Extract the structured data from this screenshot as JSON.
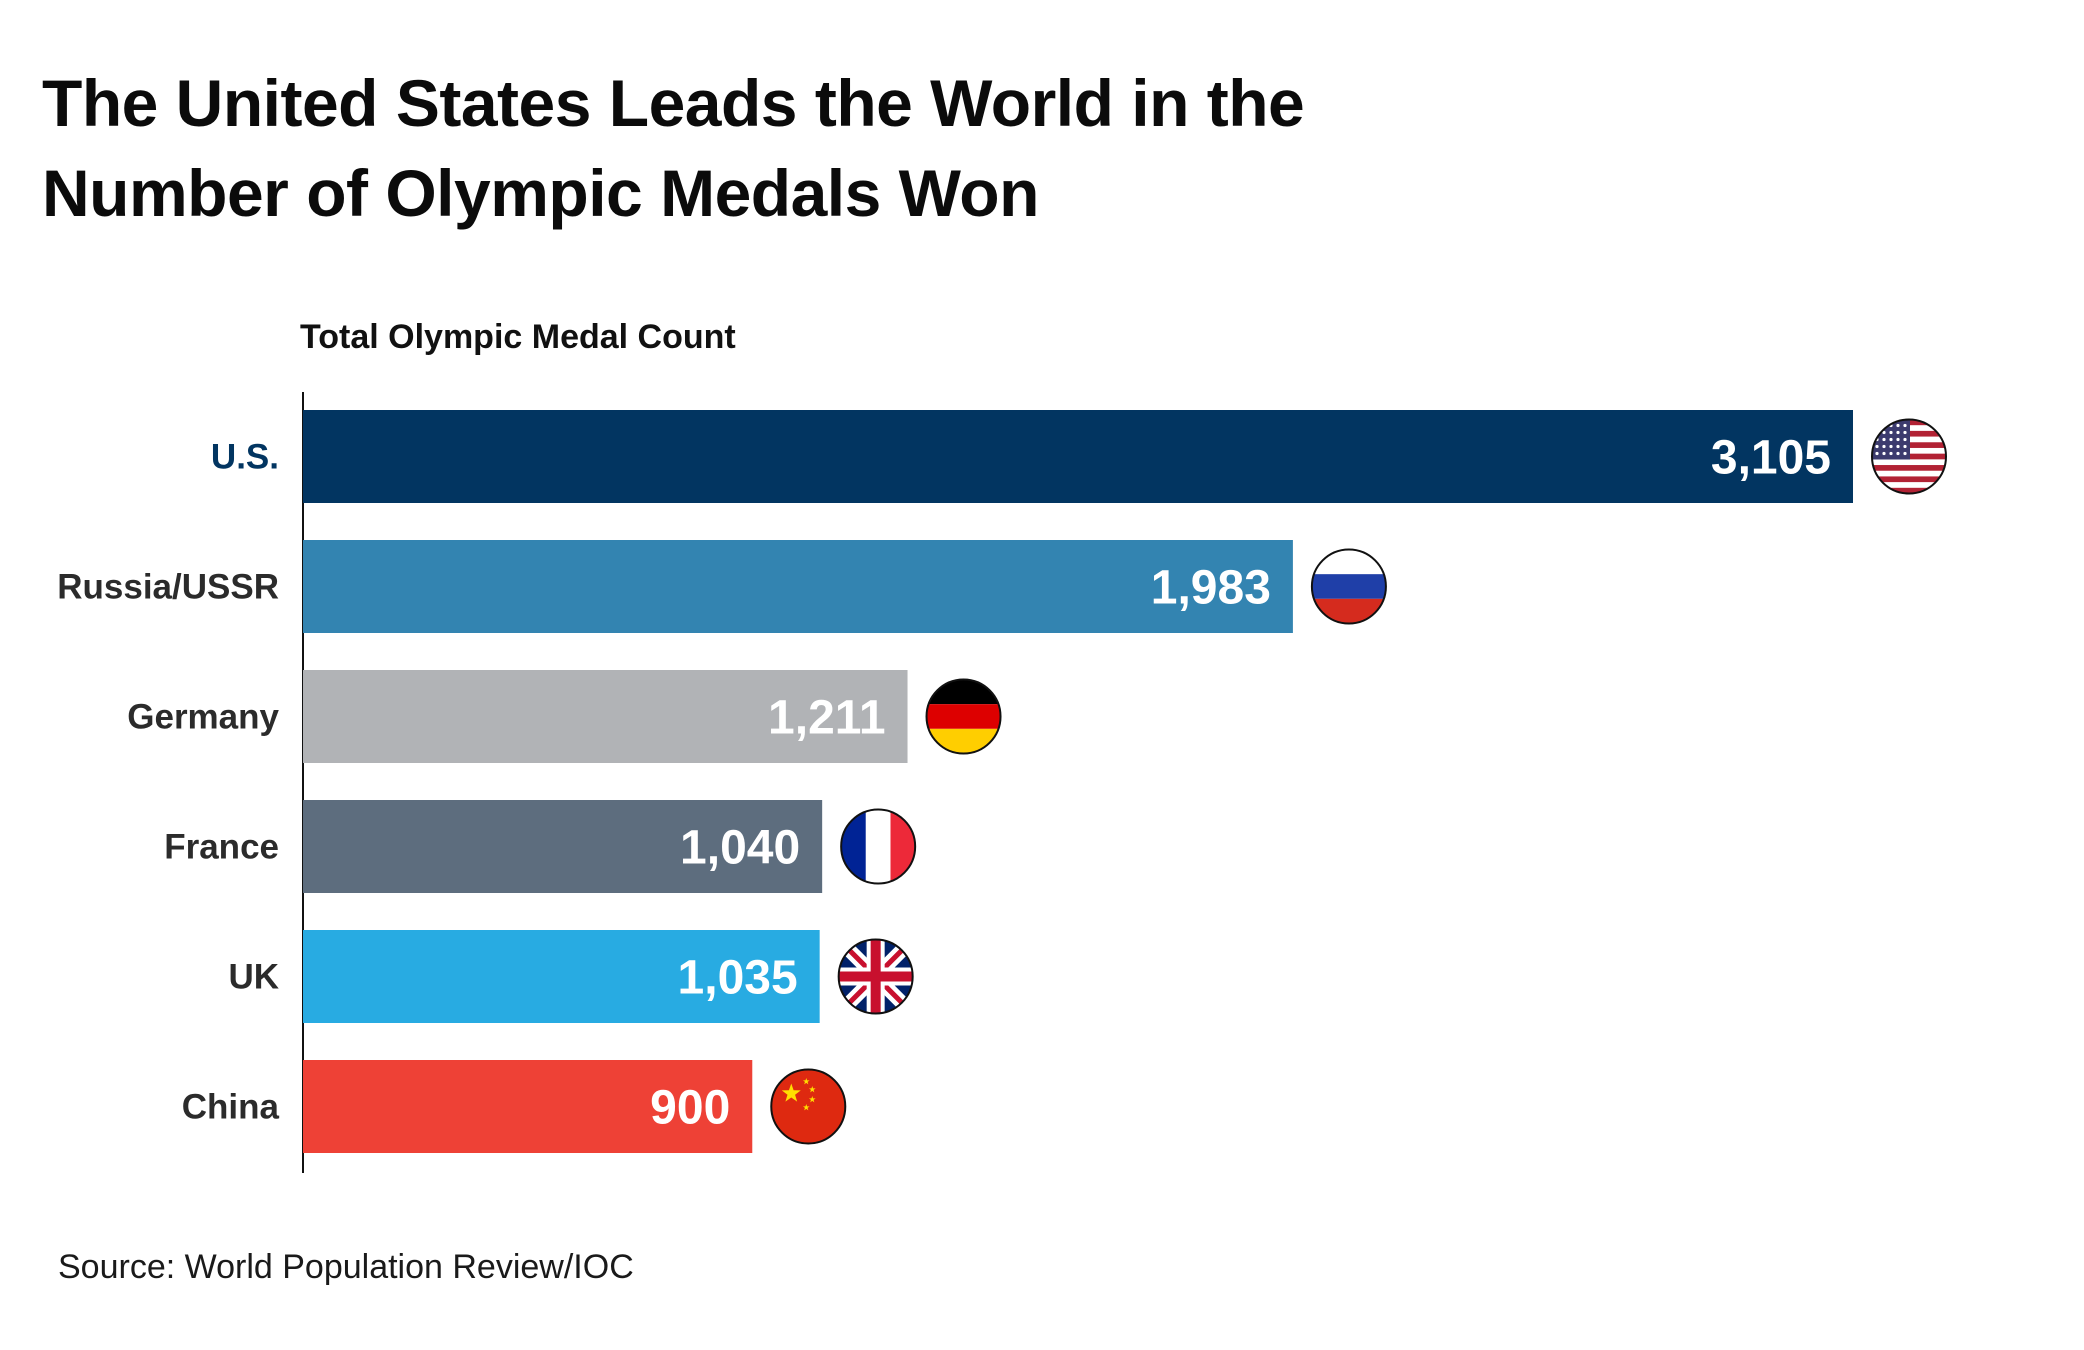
{
  "chart_data": {
    "type": "bar",
    "orientation": "horizontal",
    "title": "The United States Leads the World in the Number of Olympic Medals Won",
    "subtitle": "Total Olympic Medal Count",
    "source": "Source: World Population Review/IOC",
    "categories": [
      "U.S.",
      "Russia/USSR",
      "Germany",
      "France",
      "UK",
      "China"
    ],
    "values": [
      3105,
      1983,
      1211,
      1040,
      1035,
      900
    ],
    "value_labels": [
      "3,105",
      "1,983",
      "1,211",
      "1,040",
      "1,035",
      "900"
    ],
    "bar_colors": [
      "#023561",
      "#3384b1",
      "#b1b3b6",
      "#5d6d7e",
      "#28abe2",
      "#ee4136"
    ],
    "label_colors": [
      "#023561",
      "#2b2b2b",
      "#2b2b2b",
      "#2b2b2b",
      "#2b2b2b",
      "#2b2b2b"
    ],
    "flags": [
      "usa-flag-icon",
      "russia-flag-icon",
      "germany-flag-icon",
      "france-flag-icon",
      "uk-flag-icon",
      "china-flag-icon"
    ],
    "xlim": [
      0,
      3105
    ],
    "grid": false,
    "legend": "none"
  }
}
